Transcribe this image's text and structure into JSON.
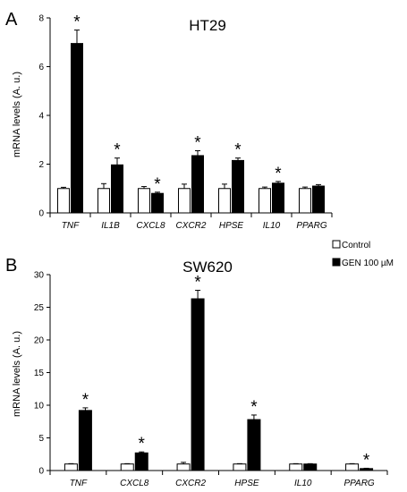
{
  "chart_data": [
    {
      "type": "bar",
      "panel_label": "A",
      "title": "HT29",
      "ylabel": "mRNA levels (A. u.)",
      "ylim": [
        0,
        8
      ],
      "yticks": [
        0,
        2,
        4,
        6,
        8
      ],
      "categories": [
        "TNF",
        "IL1B",
        "CXCL8",
        "CXCR2",
        "HPSE",
        "IL10",
        "PPARG"
      ],
      "series": [
        {
          "name": "Control",
          "color": "#ffffff",
          "values": [
            1.0,
            1.0,
            1.0,
            1.0,
            1.0,
            1.0,
            1.0
          ],
          "errors": [
            0.05,
            0.2,
            0.08,
            0.18,
            0.18,
            0.06,
            0.06
          ]
        },
        {
          "name": "GEN 100 µM",
          "color": "#000000",
          "values": [
            6.95,
            1.97,
            0.8,
            2.35,
            2.15,
            1.22,
            1.1
          ],
          "errors": [
            0.55,
            0.28,
            0.05,
            0.2,
            0.1,
            0.07,
            0.06
          ]
        }
      ],
      "significance": [
        "*",
        "*",
        "*",
        "*",
        "*",
        "*",
        ""
      ]
    },
    {
      "type": "bar",
      "panel_label": "B",
      "title": "SW620",
      "ylabel": "mRNA levels (A. u.)",
      "ylim": [
        0,
        30
      ],
      "yticks": [
        0,
        5,
        10,
        15,
        20,
        25,
        30
      ],
      "categories": [
        "TNF",
        "CXCL8",
        "CXCR2",
        "HPSE",
        "IL10",
        "PPARG"
      ],
      "series": [
        {
          "name": "Control",
          "color": "#ffffff",
          "values": [
            1.0,
            1.0,
            1.0,
            1.0,
            1.0,
            1.0
          ],
          "errors": [
            0.05,
            0.05,
            0.25,
            0.05,
            0.05,
            0.05
          ]
        },
        {
          "name": "GEN 100 µM",
          "color": "#000000",
          "values": [
            9.2,
            2.7,
            26.3,
            7.8,
            1.0,
            0.3
          ],
          "errors": [
            0.4,
            0.15,
            1.3,
            0.7,
            0.05,
            0.05
          ]
        }
      ],
      "significance": [
        "*",
        "*",
        "*",
        "*",
        "",
        "*"
      ]
    }
  ],
  "legend": {
    "position": "right-between-panels",
    "items": [
      {
        "label": "Control",
        "color": "#ffffff"
      },
      {
        "label": "GEN 100 µM",
        "color": "#000000"
      }
    ]
  }
}
